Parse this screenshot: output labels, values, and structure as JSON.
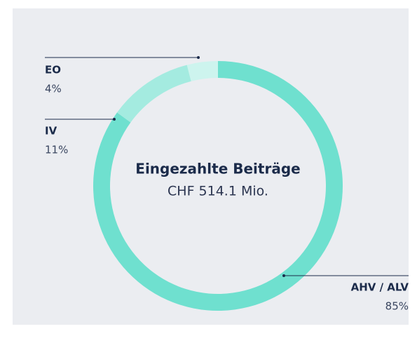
{
  "chart_data": {
    "type": "donut",
    "center_title": "Eingezahlte Beiträge",
    "center_subtitle": "CHF 514.1 Mio.",
    "labels": [
      "AHV / ALV",
      "IV",
      "EO"
    ],
    "values": [
      85,
      11,
      4
    ],
    "value_labels": [
      "85%",
      "11%",
      "4%"
    ],
    "colors": [
      "#6fe0cf",
      "#a4ebe0",
      "#cdf4ee"
    ]
  }
}
